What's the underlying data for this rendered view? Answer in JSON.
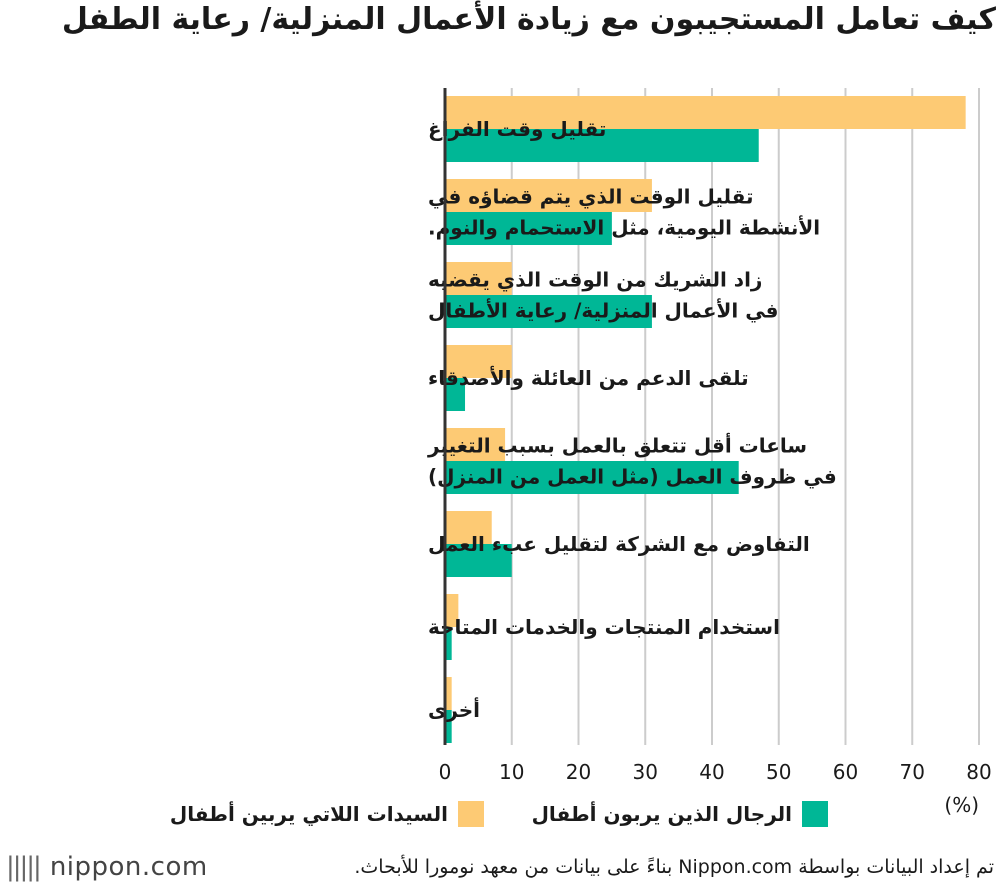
{
  "title": "كيف تعامل المستجيبون مع زيادة الأعمال المنزلية/ رعاية الطفل",
  "colors": {
    "women": "#fdca74",
    "men": "#00b796",
    "grid": "#cccccc",
    "axis": "#333333"
  },
  "chart_data": {
    "type": "bar",
    "orientation": "horizontal",
    "title": "كيف تعامل المستجيبون مع زيادة الأعمال المنزلية/ رعاية الطفل",
    "categories": [
      [
        "تقليل وقت الفراغ"
      ],
      [
        "تقليل الوقت الذي يتم قضاؤه في",
        "الأنشطة اليومية، مثل الاستحمام والنوم."
      ],
      [
        "زاد الشريك من الوقت الذي يقضيه",
        "في الأعمال المنزلية/ رعاية الأطفال"
      ],
      [
        "تلقى الدعم من العائلة والأصدقاء"
      ],
      [
        "ساعات أقل تتعلق بالعمل بسبب التغيير",
        "في ظروف العمل (مثل العمل من المنزل)"
      ],
      [
        "التفاوض مع الشركة لتقليل عبء العمل"
      ],
      [
        "استخدام المنتجات والخدمات المتاحة"
      ],
      [
        "أخرى"
      ]
    ],
    "series": [
      {
        "name": "السيدات اللاتي يربين أطفال",
        "key": "women",
        "values": [
          78,
          31,
          10,
          10,
          9,
          7,
          2,
          1
        ]
      },
      {
        "name": "الرجال الذين يربون أطفال",
        "key": "men",
        "values": [
          47,
          25,
          31,
          3,
          44,
          10,
          1,
          1
        ]
      }
    ],
    "xlim": [
      0,
      80
    ],
    "xticks": [
      0,
      10,
      20,
      30,
      40,
      50,
      60,
      70,
      80
    ],
    "xlabel": "(%)",
    "grid": true,
    "legend_position": "bottom"
  },
  "legend": {
    "men": "الرجال الذين يربون أطفال",
    "women": "السيدات اللاتي يربين أطفال"
  },
  "footer": {
    "brand": "nippon.com",
    "brand_bars": "|||||",
    "source": "تم إعداد البيانات بواسطة Nippon.com بناءً على بيانات من معهد نومورا للأبحاث."
  }
}
